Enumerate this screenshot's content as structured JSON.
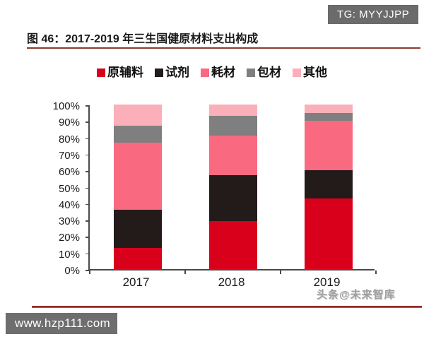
{
  "header": {
    "tg_badge": "TG: MYYJJPP"
  },
  "figure": {
    "title": "图 46：2017-2019 年三生国健原材料支出构成"
  },
  "watermark": "头条@未来智库",
  "footer": {
    "url_badge": "www.hzp111.com"
  },
  "colors": {
    "accent_red": "#D9001B",
    "title_underline": "#8C3A2A",
    "footer_line": "#8E2C22",
    "badge_gray": "#6B6B6B",
    "axis": "#4A4A4A"
  },
  "chart_data": {
    "type": "bar",
    "stacked": true,
    "title": "2017-2019 年三生国健原材料支出构成",
    "categories": [
      "2017",
      "2018",
      "2019"
    ],
    "series": [
      {
        "name": "原辅料",
        "color": "#D9001B",
        "values": [
          13,
          29,
          43
        ]
      },
      {
        "name": "试剂",
        "color": "#231A1A",
        "values": [
          23,
          28,
          17
        ]
      },
      {
        "name": "耗材",
        "color": "#F96A80",
        "values": [
          41,
          24,
          30
        ]
      },
      {
        "name": "包材",
        "color": "#7F7F7F",
        "values": [
          10,
          12,
          5
        ]
      },
      {
        "name": "其他",
        "color": "#FBAFB8",
        "values": [
          13,
          7,
          5
        ]
      }
    ],
    "unit": "%",
    "ylim": [
      0,
      100
    ],
    "ytick_step": 10,
    "ytick_labels": [
      "0%",
      "10%",
      "20%",
      "30%",
      "40%",
      "50%",
      "60%",
      "70%",
      "80%",
      "90%",
      "100%"
    ],
    "legend_position": "top",
    "grid": false
  }
}
